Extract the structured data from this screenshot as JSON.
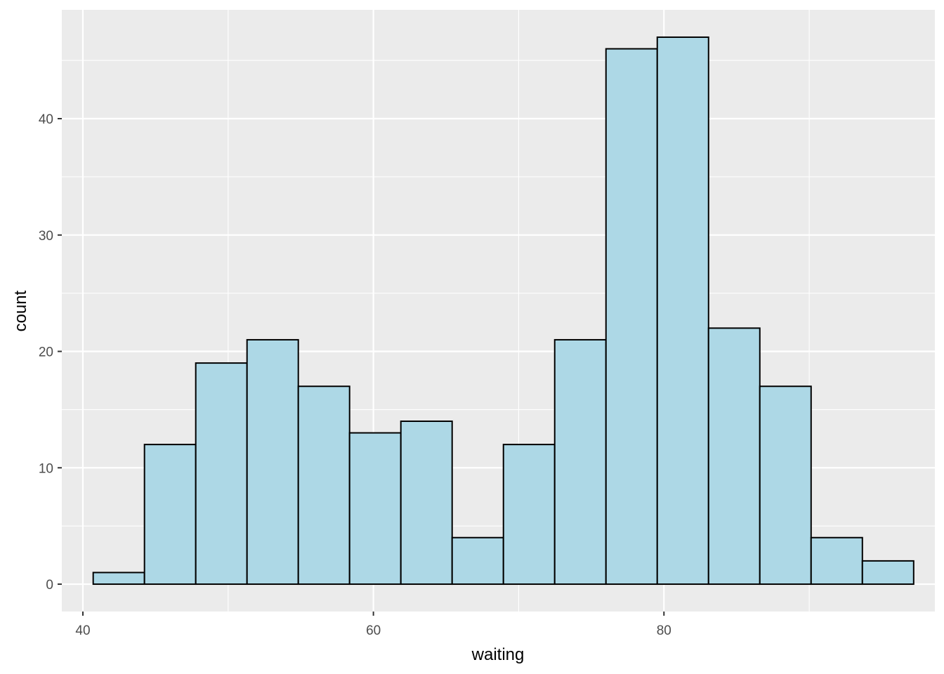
{
  "chart_data": {
    "type": "bar",
    "subtype": "histogram",
    "xlabel": "waiting",
    "ylabel": "count",
    "xlim": [
      38.55,
      98.65
    ],
    "ylim": [
      -2.35,
      49.35
    ],
    "x_ticks": [
      40,
      60,
      80
    ],
    "y_ticks": [
      0,
      10,
      20,
      30,
      40
    ],
    "grid": true,
    "fill_color": "#add8e6",
    "edge_color": "#000000",
    "panel_background": "#ebebeb",
    "grid_color": "#ffffff",
    "bin_width": 3.53,
    "bins": [
      {
        "start": 40.71,
        "end": 44.24,
        "count": 1
      },
      {
        "start": 44.24,
        "end": 47.77,
        "count": 12
      },
      {
        "start": 47.77,
        "end": 51.3,
        "count": 19
      },
      {
        "start": 51.3,
        "end": 54.83,
        "count": 21
      },
      {
        "start": 54.83,
        "end": 58.36,
        "count": 17
      },
      {
        "start": 58.36,
        "end": 61.89,
        "count": 13
      },
      {
        "start": 61.89,
        "end": 65.42,
        "count": 14
      },
      {
        "start": 65.42,
        "end": 68.95,
        "count": 4
      },
      {
        "start": 68.95,
        "end": 72.48,
        "count": 12
      },
      {
        "start": 72.48,
        "end": 76.01,
        "count": 21
      },
      {
        "start": 76.01,
        "end": 79.54,
        "count": 46
      },
      {
        "start": 79.54,
        "end": 83.07,
        "count": 47
      },
      {
        "start": 83.07,
        "end": 86.6,
        "count": 22
      },
      {
        "start": 86.6,
        "end": 90.13,
        "count": 17
      },
      {
        "start": 90.13,
        "end": 93.66,
        "count": 4
      },
      {
        "start": 93.66,
        "end": 97.19,
        "count": 2
      }
    ]
  }
}
